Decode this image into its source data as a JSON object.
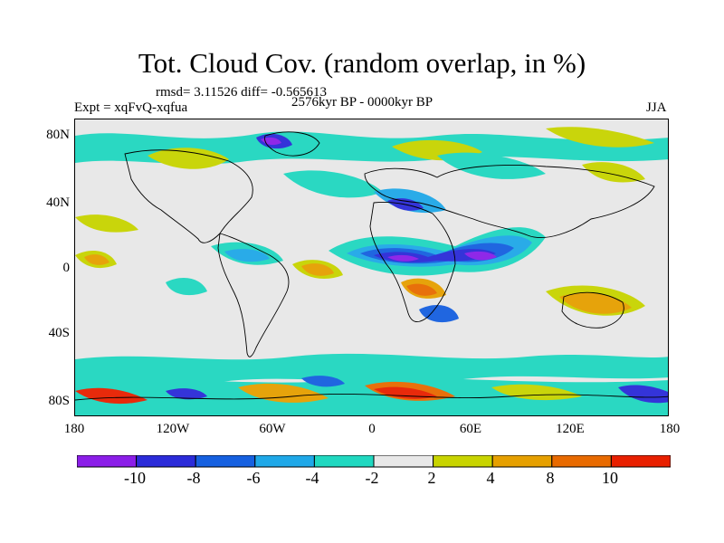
{
  "title": "Tot. Cloud Cov. (random overlap, in %)",
  "stats": "rmsd= 3.11526 diff= -0.565613",
  "experiment": "Expt = xqFvQ-xqfua",
  "period": "2576kyr BP - 0000kyr BP",
  "season": "JJA",
  "map": {
    "y_ticks": [
      "80N",
      "40N",
      "0",
      "40S",
      "80S"
    ],
    "x_ticks": [
      "180",
      "120W",
      "60W",
      "0",
      "60E",
      "120E",
      "180"
    ],
    "background_color": "#e8e8e8",
    "coastline_color": "#000000"
  },
  "colorbar": {
    "colors": [
      "#8b1ee8",
      "#2b2bd9",
      "#1660e0",
      "#1fa8e8",
      "#20d8c0",
      "#e8e8e8",
      "#c8d400",
      "#e6a000",
      "#e86a00",
      "#e82000"
    ],
    "labels": [
      "-10",
      "-8",
      "-6",
      "-4",
      "-2",
      "2",
      "4",
      "8",
      "10"
    ]
  }
}
